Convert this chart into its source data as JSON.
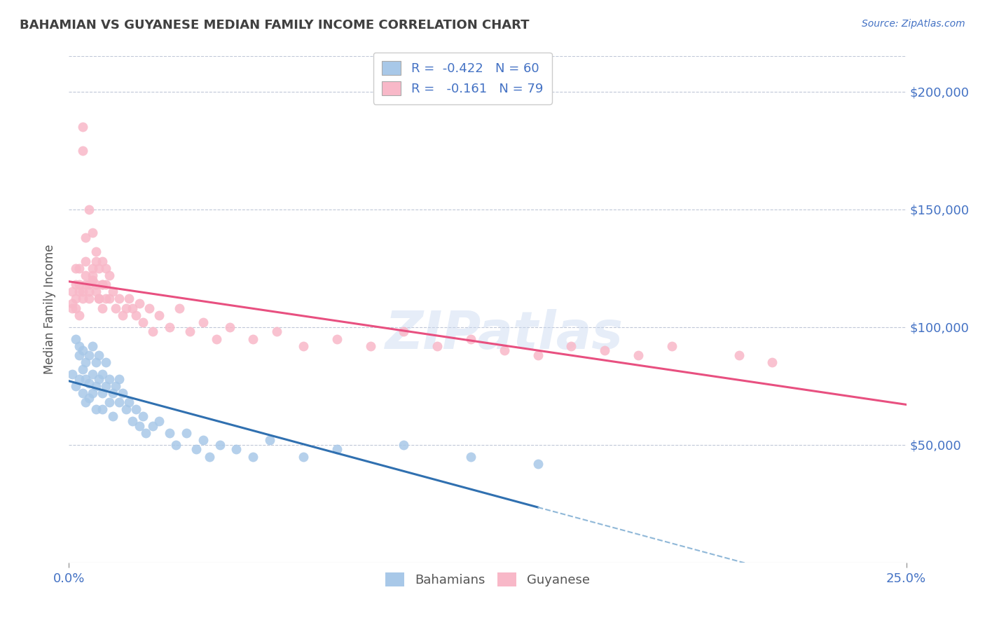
{
  "title": "BAHAMIAN VS GUYANESE MEDIAN FAMILY INCOME CORRELATION CHART",
  "source_text": "Source: ZipAtlas.com",
  "ylabel": "Median Family Income",
  "xlim": [
    0.0,
    0.25
  ],
  "ylim": [
    0,
    215000
  ],
  "yticks": [
    50000,
    100000,
    150000,
    200000
  ],
  "ytick_labels": [
    "$50,000",
    "$100,000",
    "$150,000",
    "$200,000"
  ],
  "xtick_positions": [
    0.0,
    0.25
  ],
  "xtick_labels": [
    "0.0%",
    "25.0%"
  ],
  "bahamian_color": "#a8c8e8",
  "guyanese_color": "#f8b8c8",
  "bahamian_line_color": "#3070b0",
  "guyanese_line_color": "#e85080",
  "dashed_line_color": "#90b8d8",
  "R_bahamian": -0.422,
  "N_bahamian": 60,
  "R_guyanese": -0.161,
  "N_guyanese": 79,
  "legend_label_bahamian": "Bahamians",
  "legend_label_guyanese": "Guyanese",
  "axis_color": "#4472c4",
  "watermark": "ZIPatlas",
  "background_color": "#ffffff",
  "grid_color": "#c0c8d8",
  "title_color": "#404040",
  "bahamian_x": [
    0.001,
    0.002,
    0.002,
    0.003,
    0.003,
    0.003,
    0.004,
    0.004,
    0.004,
    0.005,
    0.005,
    0.005,
    0.006,
    0.006,
    0.006,
    0.007,
    0.007,
    0.007,
    0.008,
    0.008,
    0.008,
    0.009,
    0.009,
    0.01,
    0.01,
    0.01,
    0.011,
    0.011,
    0.012,
    0.012,
    0.013,
    0.013,
    0.014,
    0.015,
    0.015,
    0.016,
    0.017,
    0.018,
    0.019,
    0.02,
    0.021,
    0.022,
    0.023,
    0.025,
    0.027,
    0.03,
    0.032,
    0.035,
    0.038,
    0.04,
    0.042,
    0.045,
    0.05,
    0.055,
    0.06,
    0.07,
    0.08,
    0.1,
    0.12,
    0.14
  ],
  "bahamian_y": [
    80000,
    95000,
    75000,
    88000,
    78000,
    92000,
    82000,
    72000,
    90000,
    78000,
    68000,
    85000,
    76000,
    88000,
    70000,
    80000,
    72000,
    92000,
    75000,
    85000,
    65000,
    78000,
    88000,
    72000,
    80000,
    65000,
    75000,
    85000,
    68000,
    78000,
    72000,
    62000,
    75000,
    68000,
    78000,
    72000,
    65000,
    68000,
    60000,
    65000,
    58000,
    62000,
    55000,
    58000,
    60000,
    55000,
    50000,
    55000,
    48000,
    52000,
    45000,
    50000,
    48000,
    45000,
    52000,
    45000,
    48000,
    50000,
    45000,
    42000
  ],
  "guyanese_x": [
    0.001,
    0.002,
    0.003,
    0.003,
    0.004,
    0.004,
    0.005,
    0.005,
    0.006,
    0.006,
    0.007,
    0.007,
    0.007,
    0.008,
    0.008,
    0.008,
    0.009,
    0.009,
    0.01,
    0.01,
    0.01,
    0.011,
    0.011,
    0.012,
    0.012,
    0.013,
    0.014,
    0.015,
    0.016,
    0.017,
    0.018,
    0.019,
    0.02,
    0.021,
    0.022,
    0.024,
    0.025,
    0.027,
    0.03,
    0.033,
    0.036,
    0.04,
    0.044,
    0.048,
    0.055,
    0.062,
    0.07,
    0.08,
    0.09,
    0.1,
    0.11,
    0.12,
    0.13,
    0.14,
    0.15,
    0.16,
    0.17,
    0.18,
    0.2,
    0.21,
    0.002,
    0.003,
    0.004,
    0.005,
    0.006,
    0.007,
    0.008,
    0.009,
    0.01,
    0.011,
    0.001,
    0.001,
    0.002,
    0.002,
    0.003,
    0.004,
    0.005,
    0.006,
    0.007
  ],
  "guyanese_y": [
    110000,
    125000,
    115000,
    105000,
    175000,
    185000,
    128000,
    138000,
    118000,
    150000,
    125000,
    140000,
    120000,
    132000,
    115000,
    128000,
    112000,
    125000,
    118000,
    128000,
    108000,
    118000,
    125000,
    112000,
    122000,
    115000,
    108000,
    112000,
    105000,
    108000,
    112000,
    108000,
    105000,
    110000,
    102000,
    108000,
    98000,
    105000,
    100000,
    108000,
    98000,
    102000,
    95000,
    100000,
    95000,
    98000,
    92000,
    95000,
    92000,
    98000,
    92000,
    95000,
    90000,
    88000,
    92000,
    90000,
    88000,
    92000,
    88000,
    85000,
    108000,
    118000,
    112000,
    122000,
    115000,
    122000,
    118000,
    112000,
    118000,
    112000,
    115000,
    108000,
    118000,
    112000,
    125000,
    115000,
    118000,
    112000,
    120000
  ]
}
